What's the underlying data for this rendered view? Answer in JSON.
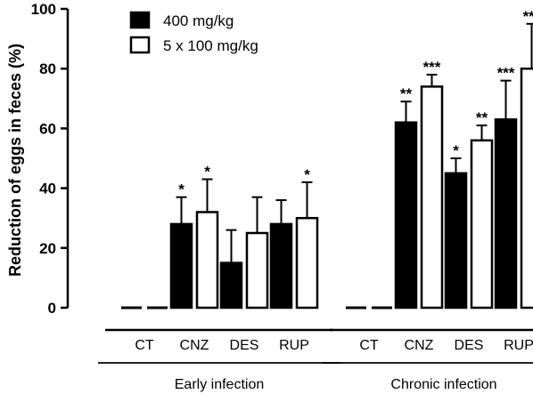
{
  "chart_data": {
    "type": "bar",
    "ylabel": "Reduction of eggs in feces (%)",
    "ylim": [
      0,
      100
    ],
    "yticks": [
      "0",
      "20",
      "40",
      "60",
      "80",
      "100"
    ],
    "categories": [
      "CT",
      "CNZ",
      "DES",
      "RUP"
    ],
    "groups": [
      {
        "label": "Early infection",
        "series": [
          {
            "name": "400 mg/kg",
            "fill": "#000000",
            "values": [
              0,
              28,
              15,
              28
            ],
            "errors": [
              0,
              9,
              11,
              8
            ],
            "significance": [
              "",
              "*",
              "",
              ""
            ]
          },
          {
            "name": "5 x 100 mg/kg",
            "fill": "#ffffff",
            "values": [
              0,
              32,
              25,
              30
            ],
            "errors": [
              0,
              11,
              12,
              12
            ],
            "significance": [
              "",
              "*",
              "",
              "*"
            ]
          }
        ]
      },
      {
        "label": "Chronic infection",
        "series": [
          {
            "name": "400 mg/kg",
            "fill": "#000000",
            "values": [
              0,
              62,
              45,
              63
            ],
            "errors": [
              0,
              7,
              5,
              13
            ],
            "significance": [
              "",
              "**",
              "*",
              "***"
            ]
          },
          {
            "name": "5 x 100 mg/kg",
            "fill": "#ffffff",
            "values": [
              0,
              74,
              56,
              80
            ],
            "errors": [
              0,
              4,
              5,
              15
            ],
            "significance": [
              "",
              "***",
              "**",
              "***"
            ]
          }
        ]
      }
    ],
    "legend": [
      {
        "name": "400 mg/kg",
        "fill": "#000000"
      },
      {
        "name": "5 x 100 mg/kg",
        "fill": "#ffffff"
      }
    ],
    "legend_position": "top-left",
    "grid": false
  }
}
